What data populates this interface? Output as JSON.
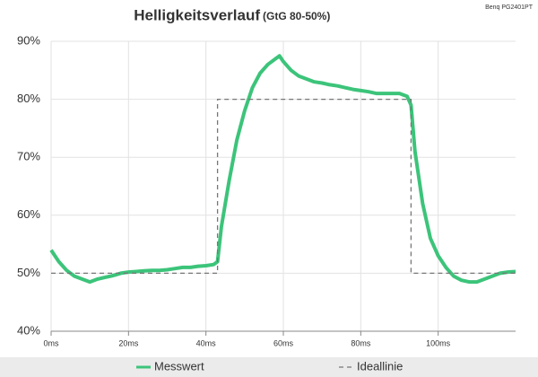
{
  "chart_data": {
    "type": "line",
    "title": "Helligkeitsverlauf",
    "subtitle": "(GtG 80-50%)",
    "annotation": "Benq PG2401PT",
    "xlim": [
      0,
      120
    ],
    "ylim": [
      40,
      90
    ],
    "grid": true,
    "legend": "bottom",
    "xticks": [
      {
        "value": 0,
        "label": "0ms"
      },
      {
        "value": 20,
        "label": "20ms"
      },
      {
        "value": 40,
        "label": "40ms"
      },
      {
        "value": 60,
        "label": "60ms"
      },
      {
        "value": 80,
        "label": "80ms"
      },
      {
        "value": 100,
        "label": "100ms"
      }
    ],
    "yticks": [
      {
        "value": 40,
        "label": "40%"
      },
      {
        "value": 50,
        "label": "50%"
      },
      {
        "value": 60,
        "label": "60%"
      },
      {
        "value": 70,
        "label": "70%"
      },
      {
        "value": 80,
        "label": "80%"
      },
      {
        "value": 90,
        "label": "90%"
      }
    ],
    "series": [
      {
        "name": "Messwert",
        "color": "#3cc47a",
        "dash": false,
        "x": [
          0,
          2,
          4,
          6,
          8,
          10,
          12,
          14,
          16,
          18,
          20,
          22,
          24,
          26,
          28,
          30,
          32,
          34,
          36,
          38,
          40,
          42,
          43,
          44,
          46,
          48,
          50,
          52,
          54,
          56,
          58,
          59,
          60,
          62,
          64,
          66,
          68,
          70,
          72,
          74,
          76,
          78,
          80,
          82,
          84,
          86,
          88,
          90,
          92,
          93,
          94,
          96,
          98,
          100,
          102,
          104,
          106,
          108,
          110,
          112,
          114,
          116,
          118,
          120
        ],
        "values": [
          54,
          52,
          50.5,
          49.5,
          49,
          48.5,
          49,
          49.3,
          49.6,
          50,
          50.2,
          50.3,
          50.4,
          50.5,
          50.5,
          50.6,
          50.8,
          51,
          51,
          51.2,
          51.3,
          51.5,
          52,
          58,
          66,
          73,
          78,
          82,
          84.5,
          86,
          87,
          87.5,
          86.5,
          85,
          84,
          83.5,
          83,
          82.8,
          82.5,
          82.3,
          82,
          81.7,
          81.5,
          81.3,
          81,
          81,
          81,
          81,
          80.5,
          79,
          71,
          62,
          56,
          53,
          51,
          49.5,
          48.8,
          48.5,
          48.5,
          49,
          49.5,
          50,
          50.2,
          50.3
        ]
      },
      {
        "name": "Ideallinie",
        "color": "#777777",
        "dash": true,
        "x": [
          0,
          43,
          43,
          93,
          93,
          120
        ],
        "values": [
          50,
          50,
          80,
          80,
          50,
          50
        ]
      }
    ]
  }
}
